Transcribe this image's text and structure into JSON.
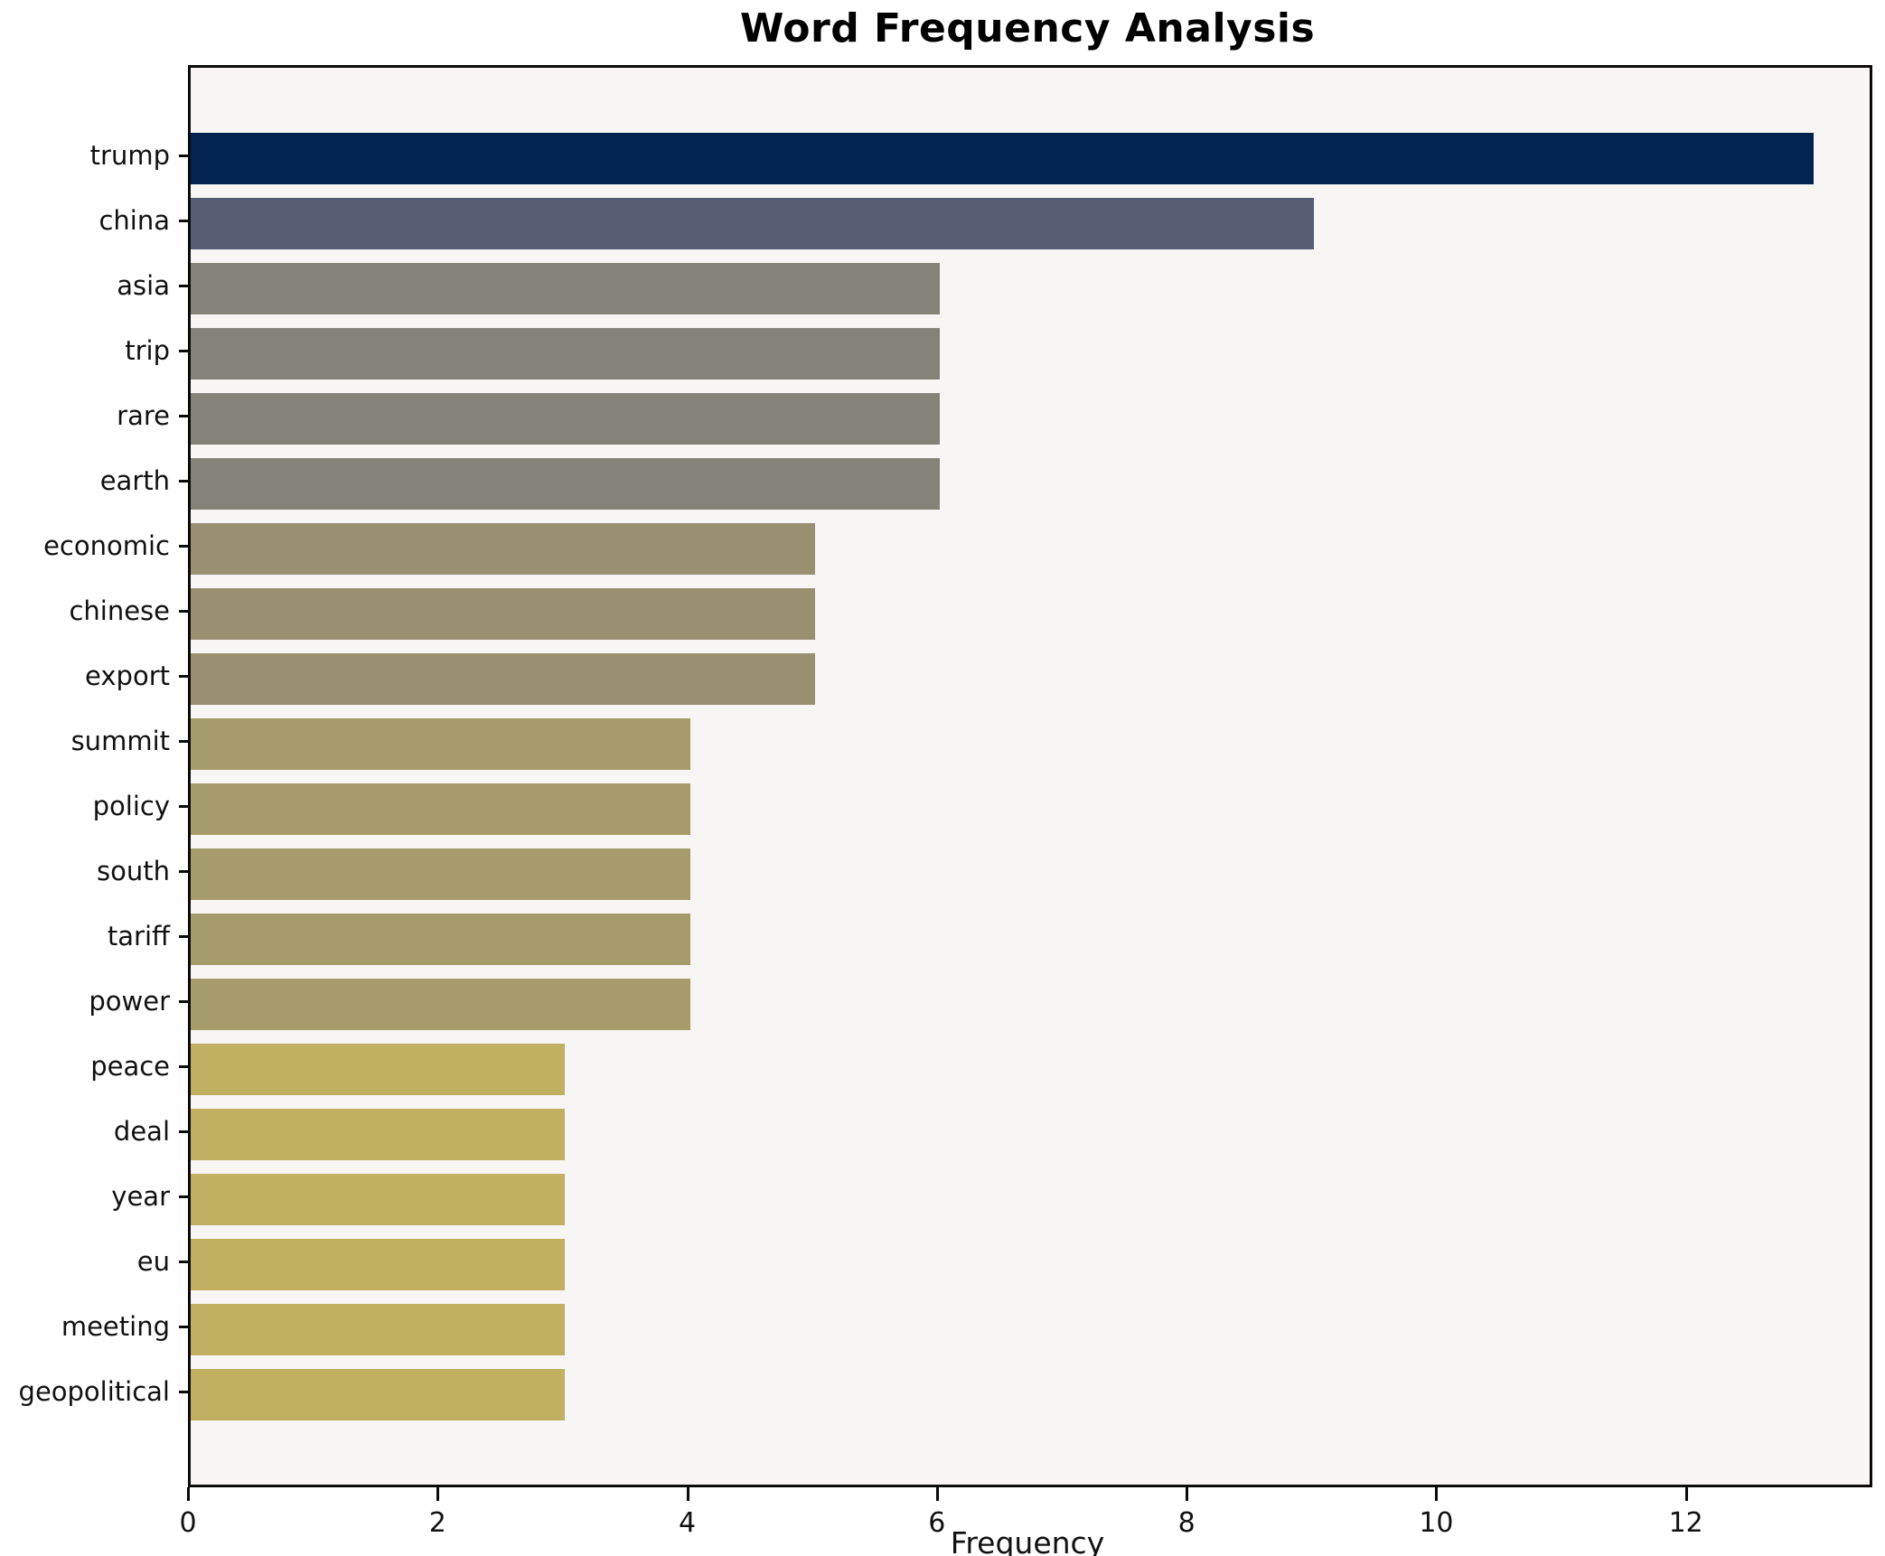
{
  "chart_data": {
    "type": "bar",
    "orientation": "horizontal",
    "title": "Word Frequency Analysis",
    "xlabel": "Frequency",
    "ylabel": "",
    "categories": [
      "trump",
      "china",
      "asia",
      "trip",
      "rare",
      "earth",
      "economic",
      "chinese",
      "export",
      "summit",
      "policy",
      "south",
      "tariff",
      "power",
      "peace",
      "deal",
      "year",
      "eu",
      "meeting",
      "geopolitical"
    ],
    "values": [
      13,
      9,
      6,
      6,
      6,
      6,
      5,
      5,
      5,
      4,
      4,
      4,
      4,
      4,
      3,
      3,
      3,
      3,
      3,
      3
    ],
    "bar_colors": [
      "#02234e",
      "#545d73",
      "#858379",
      "#858379",
      "#858379",
      "#858379",
      "#989071",
      "#989071",
      "#989071",
      "#a69c6b",
      "#a69c6b",
      "#a69c6b",
      "#a69c6b",
      "#a69c6b",
      "#c1b062",
      "#c1b062",
      "#c1b062",
      "#c1b062",
      "#c1b062",
      "#c1b062"
    ],
    "xticks": [
      0,
      2,
      4,
      6,
      8,
      10,
      12
    ],
    "xlim": [
      0,
      13.45
    ],
    "grid": false,
    "legend_position": "none",
    "plot_background": "#f7f6f4",
    "figure_background": "#ffffff",
    "spine_color": "#0a0a0a",
    "text_color": "#111111"
  }
}
